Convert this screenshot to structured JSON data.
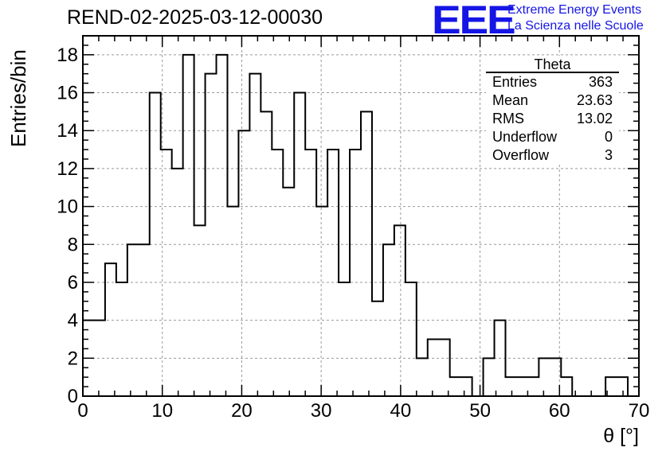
{
  "chart_data": {
    "type": "histogram",
    "title": "REND-02-2025-03-12-00030",
    "xlabel": "θ [°]",
    "ylabel": "Entries/bin",
    "xlim": [
      0,
      70
    ],
    "ylim": [
      0,
      19
    ],
    "x_ticks": [
      "0",
      "10",
      "20",
      "30",
      "40",
      "50",
      "60",
      "70"
    ],
    "y_ticks": [
      "0",
      "2",
      "4",
      "6",
      "8",
      "10",
      "12",
      "14",
      "16",
      "18"
    ],
    "grid": true,
    "bin_edges": [
      0,
      1.4,
      2.8,
      4.2,
      5.6,
      7.0,
      8.4,
      9.8,
      11.2,
      12.6,
      14.0,
      15.4,
      16.8,
      18.2,
      19.6,
      21.0,
      22.4,
      23.8,
      25.2,
      26.6,
      28.0,
      29.4,
      30.8,
      32.2,
      33.6,
      35.0,
      36.4,
      37.8,
      39.2,
      40.6,
      42.0,
      43.4,
      44.8,
      46.2,
      47.6,
      49.0,
      50.4,
      51.8,
      53.2,
      54.6,
      56.0,
      57.4,
      58.8,
      60.2,
      61.6,
      63.0,
      64.4,
      65.8,
      67.2,
      68.6,
      70.0
    ],
    "values": [
      4,
      4,
      7,
      6,
      8,
      8,
      16,
      13,
      12,
      18,
      9,
      17,
      18,
      10,
      14,
      17,
      15,
      13,
      11,
      16,
      13,
      10,
      13,
      6,
      13,
      15,
      5,
      8,
      9,
      6,
      2,
      3,
      3,
      1,
      1,
      0,
      2,
      4,
      1,
      1,
      1,
      2,
      2,
      1,
      0,
      0,
      0,
      1,
      1,
      0
    ],
    "stats": {
      "title": "Theta",
      "rows": [
        {
          "label": "Entries",
          "value": "363"
        },
        {
          "label": "Mean",
          "value": "23.63"
        },
        {
          "label": "RMS",
          "value": "13.02"
        },
        {
          "label": "Underflow",
          "value": "0"
        },
        {
          "label": "Overflow",
          "value": "3"
        }
      ]
    }
  },
  "logo": {
    "mark": "EEE",
    "line1": "Extreme Energy Events",
    "line2": "La Scienza nelle Scuole",
    "color": "#1515e6"
  }
}
